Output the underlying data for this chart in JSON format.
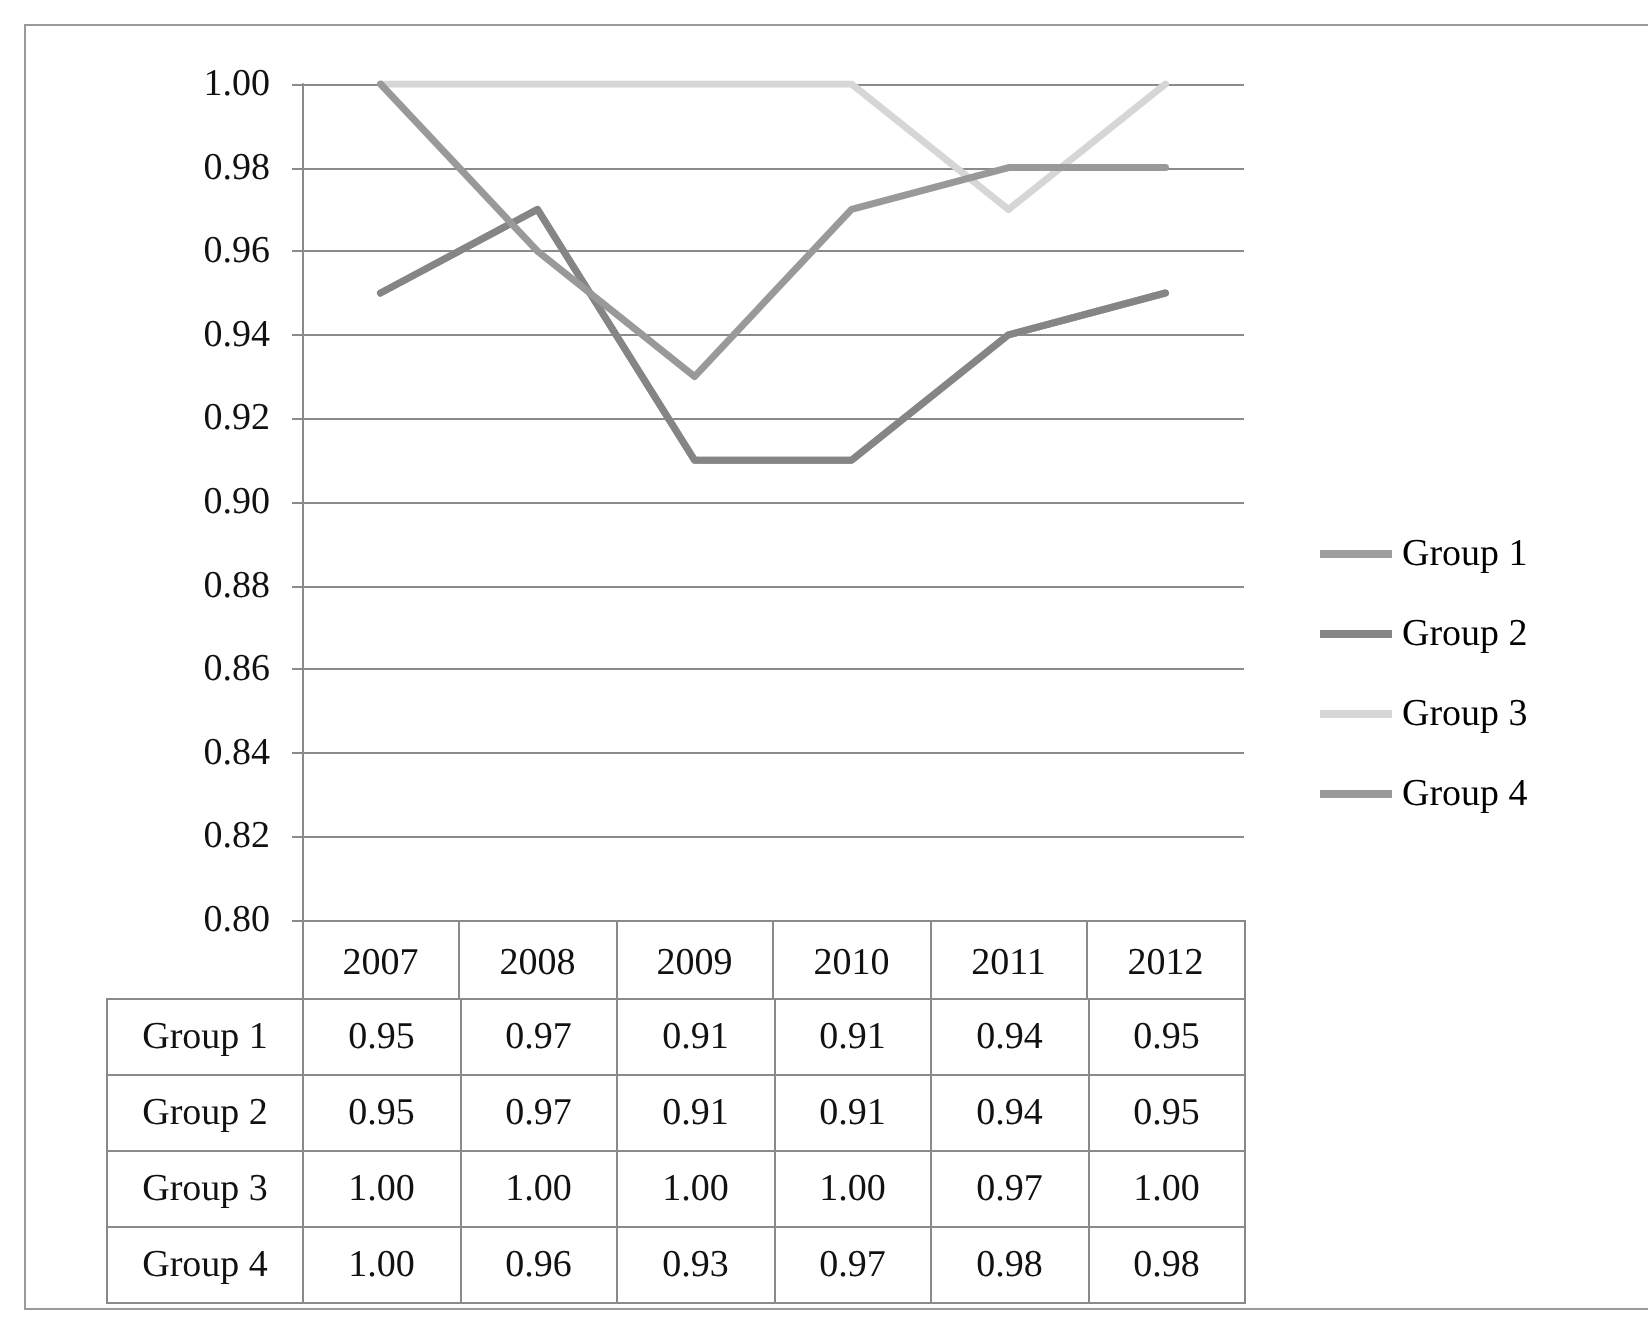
{
  "chart_data": {
    "type": "line",
    "categories": [
      "2007",
      "2008",
      "2009",
      "2010",
      "2011",
      "2012"
    ],
    "series": [
      {
        "name": "Group 1",
        "color": "#9e9e9e",
        "values": [
          0.95,
          0.97,
          0.91,
          0.91,
          0.94,
          0.95
        ],
        "value_labels": [
          "0.95",
          "0.97",
          "0.91",
          "0.91",
          "0.94",
          "0.95"
        ]
      },
      {
        "name": "Group 2",
        "color": "#858585",
        "values": [
          0.95,
          0.97,
          0.91,
          0.91,
          0.94,
          0.95
        ],
        "value_labels": [
          "0.95",
          "0.97",
          "0.91",
          "0.91",
          "0.94",
          "0.95"
        ]
      },
      {
        "name": "Group 3",
        "color": "#d6d6d6",
        "values": [
          1.0,
          1.0,
          1.0,
          1.0,
          0.97,
          1.0
        ],
        "value_labels": [
          "1.00",
          "1.00",
          "1.00",
          "1.00",
          "0.97",
          "1.00"
        ]
      },
      {
        "name": "Group 4",
        "color": "#999999",
        "values": [
          1.0,
          0.96,
          0.93,
          0.97,
          0.98,
          0.98
        ],
        "value_labels": [
          "1.00",
          "0.96",
          "0.93",
          "0.97",
          "0.98",
          "0.98"
        ]
      }
    ],
    "ylim": [
      0.8,
      1.0
    ],
    "yticks": [
      {
        "value": 0.8,
        "label": "0.80"
      },
      {
        "value": 0.82,
        "label": "0.82"
      },
      {
        "value": 0.84,
        "label": "0.84"
      },
      {
        "value": 0.86,
        "label": "0.86"
      },
      {
        "value": 0.88,
        "label": "0.88"
      },
      {
        "value": 0.9,
        "label": "0.90"
      },
      {
        "value": 0.92,
        "label": "0.92"
      },
      {
        "value": 0.94,
        "label": "0.94"
      },
      {
        "value": 0.96,
        "label": "0.96"
      },
      {
        "value": 0.98,
        "label": "0.98"
      },
      {
        "value": 1.0,
        "label": "1.00"
      }
    ],
    "grid": "y",
    "legend": "right",
    "marker": "none",
    "line_style": "solid"
  }
}
